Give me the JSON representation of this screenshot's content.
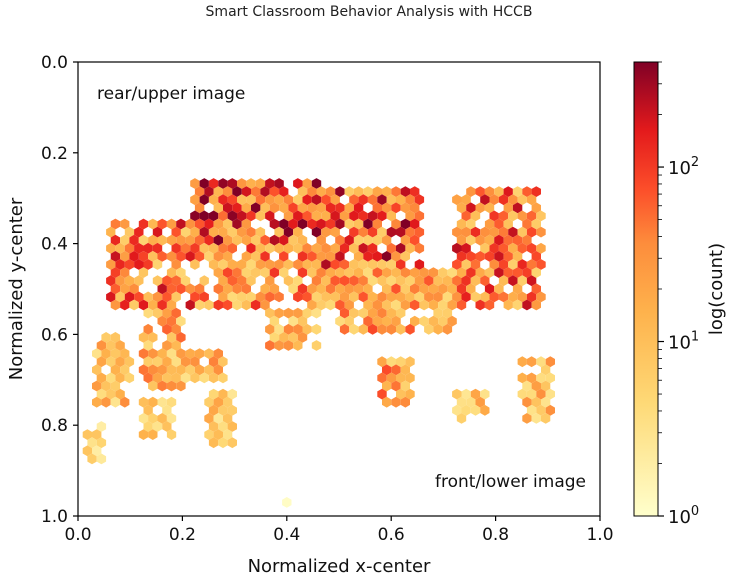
{
  "title": "Smart Classroom Behavior Analysis with HCCB",
  "chart_data": {
    "type": "heatmap",
    "subtype": "hexbin",
    "title": "Smart Classroom Behavior Analysis with HCCB",
    "xlabel": "Normalized x-center",
    "ylabel": "Normalized y-center",
    "xlim": [
      0.0,
      1.0
    ],
    "ylim": [
      1.0,
      0.0
    ],
    "y_inverted": true,
    "x_ticks": [
      0.0,
      0.2,
      0.4,
      0.6,
      0.8,
      1.0
    ],
    "y_ticks": [
      0.0,
      0.2,
      0.4,
      0.6,
      0.8,
      1.0
    ],
    "x_tick_labels": [
      "0.0",
      "0.2",
      "0.4",
      "0.6",
      "0.8",
      "1.0"
    ],
    "y_tick_labels": [
      "0.0",
      "0.2",
      "0.4",
      "0.6",
      "0.8",
      "1.0"
    ],
    "grid": false,
    "annotations": [
      {
        "text": "rear/upper image",
        "x": 0.03,
        "y": 0.07
      },
      {
        "text": "front/lower image",
        "x": 0.97,
        "y": 0.93
      }
    ],
    "colorbar": {
      "label": "log(count)",
      "scale": "log",
      "range": [
        1,
        400
      ],
      "tick_values": [
        1,
        10,
        100
      ],
      "tick_labels": [
        "10",
        "10",
        "10"
      ],
      "tick_exponents": [
        "0",
        "1",
        "2"
      ],
      "colormap": "YlOrRd"
    },
    "density_regions": [
      {
        "x_range": [
          0.22,
          0.46
        ],
        "y_range": [
          0.25,
          0.4
        ],
        "level": 2.3
      },
      {
        "x_range": [
          0.46,
          0.66
        ],
        "y_range": [
          0.28,
          0.45
        ],
        "level": 2.2
      },
      {
        "x_range": [
          0.72,
          0.89
        ],
        "y_range": [
          0.28,
          0.55
        ],
        "level": 2.0
      },
      {
        "x_range": [
          0.06,
          0.22
        ],
        "y_range": [
          0.35,
          0.55
        ],
        "level": 2.0
      },
      {
        "x_range": [
          0.22,
          0.5
        ],
        "y_range": [
          0.4,
          0.55
        ],
        "level": 1.8
      },
      {
        "x_range": [
          0.5,
          0.72
        ],
        "y_range": [
          0.45,
          0.6
        ],
        "level": 1.6
      },
      {
        "x_range": [
          0.36,
          0.46
        ],
        "y_range": [
          0.55,
          0.64
        ],
        "level": 1.4
      },
      {
        "x_range": [
          0.12,
          0.2
        ],
        "y_range": [
          0.55,
          0.72
        ],
        "level": 1.5
      },
      {
        "x_range": [
          0.2,
          0.28
        ],
        "y_range": [
          0.63,
          0.7
        ],
        "level": 1.4
      },
      {
        "x_range": [
          0.03,
          0.1
        ],
        "y_range": [
          0.6,
          0.76
        ],
        "level": 1.3
      },
      {
        "x_range": [
          0.58,
          0.64
        ],
        "y_range": [
          0.66,
          0.76
        ],
        "level": 1.7
      },
      {
        "x_range": [
          0.72,
          0.78
        ],
        "y_range": [
          0.72,
          0.8
        ],
        "level": 1.2
      },
      {
        "x_range": [
          0.85,
          0.91
        ],
        "y_range": [
          0.66,
          0.8
        ],
        "level": 1.3
      },
      {
        "x_range": [
          0.12,
          0.18
        ],
        "y_range": [
          0.74,
          0.83
        ],
        "level": 1.0
      },
      {
        "x_range": [
          0.25,
          0.3
        ],
        "y_range": [
          0.73,
          0.84
        ],
        "level": 1.1
      },
      {
        "x_range": [
          0.01,
          0.05
        ],
        "y_range": [
          0.8,
          0.88
        ],
        "level": 0.8
      }
    ]
  }
}
